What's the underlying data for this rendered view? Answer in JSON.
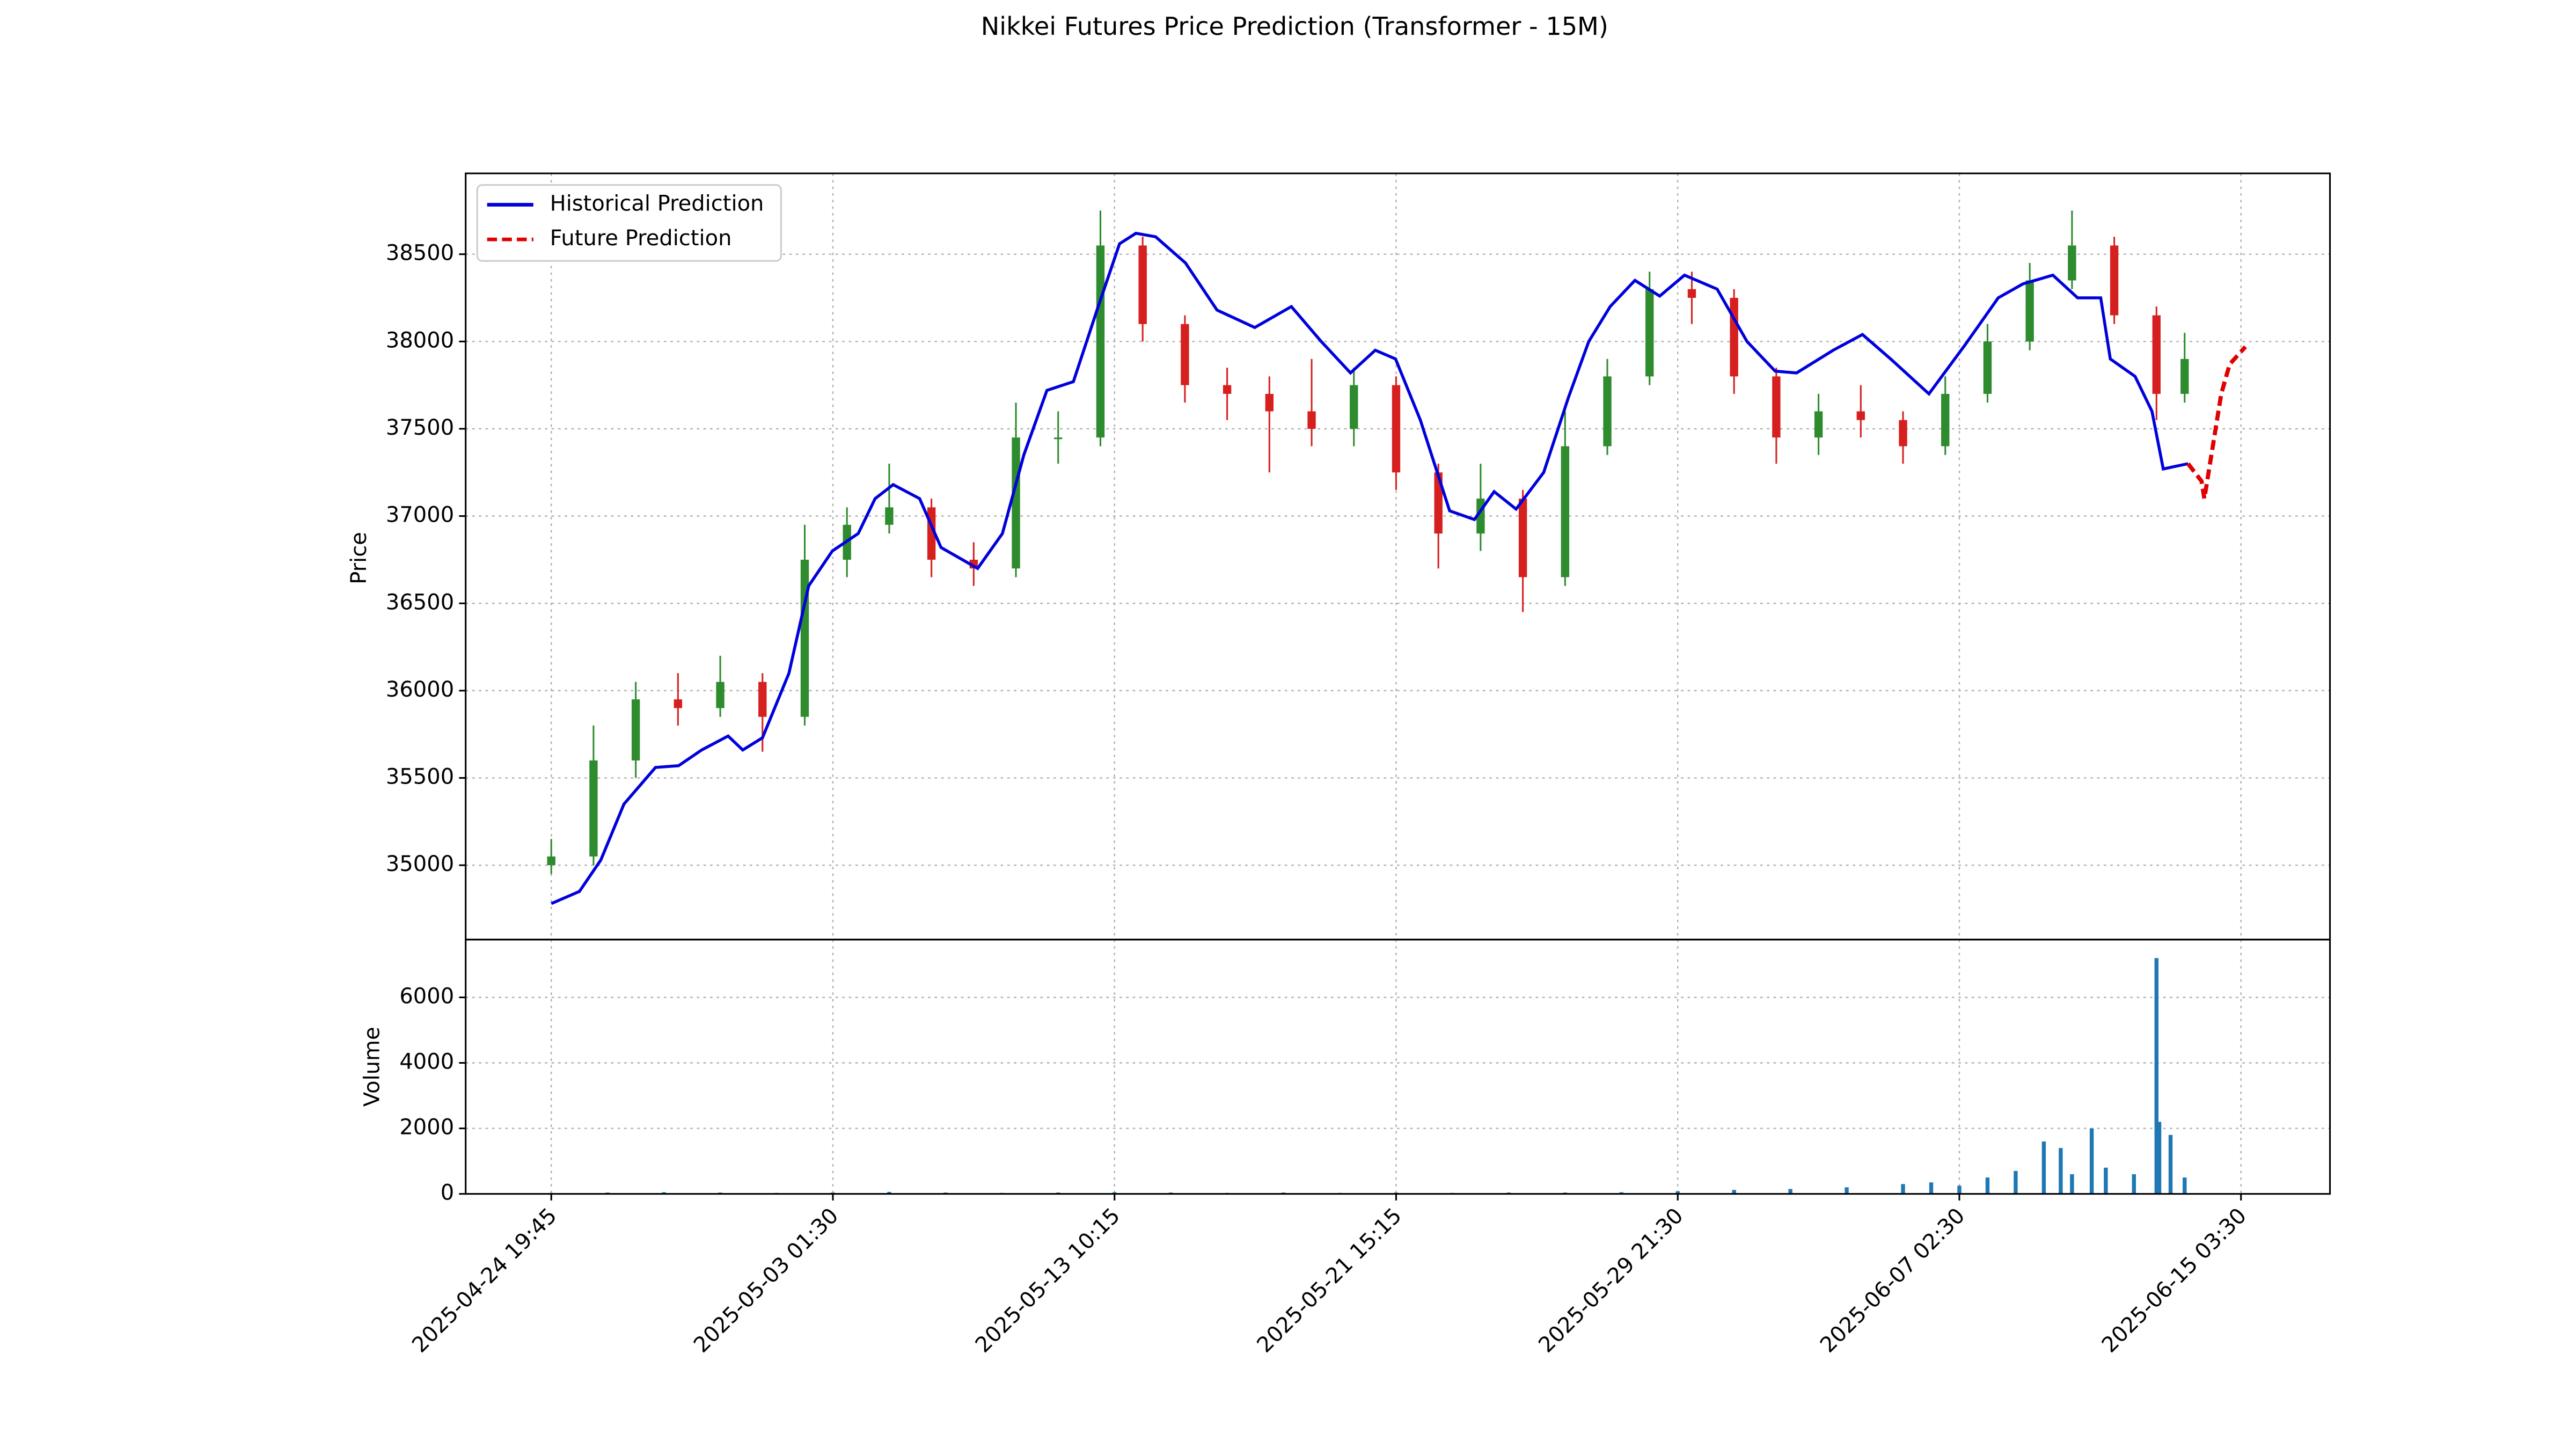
{
  "chart_data": [
    {
      "type": "candlestick",
      "title": "Nikkei Futures Price Prediction (Transformer - 15M)",
      "y_label": "Price",
      "x": [
        0,
        75,
        150,
        225,
        300,
        375,
        450,
        525,
        600,
        675,
        750,
        825,
        900,
        975,
        1050,
        1125,
        1200,
        1275,
        1350,
        1425,
        1500,
        1575,
        1650,
        1725,
        1800,
        1875,
        1950,
        2025,
        2100,
        2175,
        2250,
        2325,
        2400,
        2475,
        2550,
        2625,
        2700,
        2775,
        2850,
        2900
      ],
      "open": [
        35000,
        35050,
        35600,
        35950,
        35900,
        36050,
        35850,
        36750,
        36950,
        37050,
        36750,
        36700,
        37450,
        37450,
        38550,
        38100,
        37750,
        37700,
        37600,
        37500,
        37750,
        37250,
        36900,
        37100,
        36650,
        37400,
        37800,
        38300,
        38250,
        37800,
        37450,
        37600,
        37550,
        37400,
        37700,
        38000,
        38350,
        38550,
        38150,
        37700
      ],
      "high": [
        35150,
        35800,
        36050,
        36100,
        36200,
        36100,
        36950,
        37050,
        37300,
        37100,
        36850,
        37650,
        37600,
        38750,
        38600,
        38150,
        37850,
        37800,
        37900,
        37850,
        37800,
        37300,
        37300,
        37150,
        37600,
        37900,
        38400,
        38400,
        38300,
        37850,
        37700,
        37750,
        37600,
        37800,
        38100,
        38450,
        38750,
        38600,
        38200,
        38050
      ],
      "low": [
        34950,
        35000,
        35500,
        35800,
        35850,
        35650,
        35800,
        36650,
        36900,
        36650,
        36600,
        36650,
        37300,
        37400,
        38000,
        37650,
        37550,
        37250,
        37400,
        37400,
        37150,
        36700,
        36800,
        36450,
        36600,
        37350,
        37750,
        38100,
        37700,
        37300,
        37350,
        37450,
        37300,
        37350,
        37650,
        37950,
        38300,
        38100,
        37550,
        37650
      ],
      "close": [
        35050,
        35600,
        35950,
        35900,
        36050,
        35850,
        36750,
        36950,
        37050,
        36750,
        36700,
        37450,
        37450,
        38550,
        38100,
        37750,
        37700,
        37600,
        37500,
        37750,
        37250,
        36900,
        37100,
        36650,
        37400,
        37800,
        38300,
        38250,
        37800,
        37450,
        37600,
        37550,
        37400,
        37700,
        38000,
        38350,
        38550,
        38150,
        37700,
        37900
      ],
      "up_color": "#2e8b2e",
      "down_color": "#d62020",
      "series": [
        {
          "name": "Historical Prediction",
          "color": "#0000dd",
          "style": "solid",
          "x": [
            0,
            50,
            88,
            129,
            185,
            226,
            267,
            314,
            340,
            375,
            422,
            457,
            499,
            545,
            575,
            607,
            654,
            692,
            757,
            801,
            839,
            880,
            927,
            971,
            1009,
            1038,
            1073,
            1126,
            1182,
            1249,
            1314,
            1367,
            1419,
            1463,
            1499,
            1543,
            1595,
            1639,
            1674,
            1713,
            1762,
            1806,
            1842,
            1880,
            1924,
            1968,
            2012,
            2070,
            2123,
            2173,
            2211,
            2276,
            2328,
            2378,
            2446,
            2510,
            2569,
            2613,
            2666,
            2710,
            2751,
            2768,
            2812,
            2842,
            2862,
            2906
          ],
          "values": [
            34780,
            34850,
            35030,
            35350,
            35560,
            35570,
            35660,
            35740,
            35660,
            35730,
            36100,
            36600,
            36800,
            36900,
            37100,
            37180,
            37100,
            36820,
            36700,
            36900,
            37350,
            37720,
            37770,
            38200,
            38560,
            38620,
            38600,
            38450,
            38180,
            38080,
            38200,
            38000,
            37820,
            37950,
            37900,
            37550,
            37030,
            36980,
            37140,
            37040,
            37250,
            37680,
            38000,
            38200,
            38350,
            38260,
            38380,
            38300,
            38000,
            37830,
            37820,
            37950,
            38040,
            37900,
            37700,
            37980,
            38250,
            38330,
            38380,
            38250,
            38250,
            37900,
            37800,
            37600,
            37270,
            37300
          ]
        },
        {
          "name": "Future Prediction",
          "color": "#e00000",
          "style": "dashed",
          "x": [
            2906,
            2930,
            2935,
            2945,
            2965,
            2980,
            3008
          ],
          "values": [
            37300,
            37200,
            37100,
            37300,
            37700,
            37870,
            37970
          ]
        }
      ],
      "xlim": [
        -152,
        3158
      ],
      "ylim": [
        34574,
        38963
      ],
      "yticks": [
        35000,
        35500,
        36000,
        36500,
        37000,
        37500,
        38000,
        38500
      ],
      "grid": true,
      "legend": "upper left"
    },
    {
      "type": "bar",
      "y_label": "Volume",
      "color": "#1f77b4",
      "x": [
        0,
        100,
        200,
        300,
        400,
        500,
        600,
        700,
        800,
        900,
        1000,
        1100,
        1200,
        1300,
        1400,
        1500,
        1600,
        1700,
        1800,
        1900,
        2000,
        2100,
        2200,
        2300,
        2400,
        2450,
        2500,
        2550,
        2600,
        2650,
        2680,
        2700,
        2735,
        2760,
        2810,
        2850,
        2855,
        2875,
        2900
      ],
      "values": [
        30,
        40,
        50,
        40,
        30,
        40,
        60,
        40,
        30,
        40,
        50,
        40,
        30,
        40,
        30,
        40,
        30,
        40,
        40,
        50,
        80,
        120,
        150,
        200,
        300,
        350,
        250,
        500,
        700,
        1600,
        1400,
        600,
        2000,
        800,
        600,
        7200,
        2200,
        1800,
        500
      ],
      "xlim": [
        -152,
        3158
      ],
      "ylim": [
        0,
        7765
      ],
      "yticks": [
        0,
        2000,
        4000,
        6000
      ],
      "xticks": [
        {
          "value": 0,
          "label": "2025-04-24 19:45"
        },
        {
          "value": 500,
          "label": "2025-05-03 01:30"
        },
        {
          "value": 1000,
          "label": "2025-05-13 10:15"
        },
        {
          "value": 1500,
          "label": "2025-05-21 15:15"
        },
        {
          "value": 2000,
          "label": "2025-05-29 21:30"
        },
        {
          "value": 2500,
          "label": "2025-06-07 02:30"
        },
        {
          "value": 3000,
          "label": "2025-06-15 03:30"
        }
      ],
      "grid": true
    }
  ]
}
